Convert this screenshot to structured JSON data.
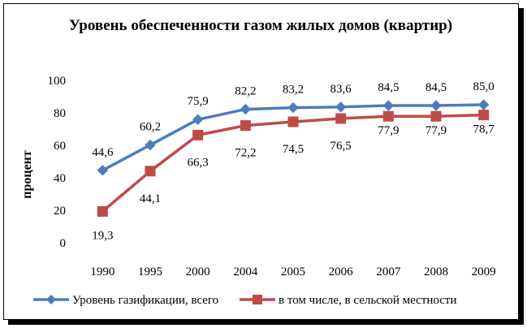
{
  "chart_data": {
    "type": "line",
    "title": "Уровень обеспеченности газом жилых домов (квартир)",
    "ylabel": "процент",
    "xlabel": "",
    "categories": [
      "1990",
      "1995",
      "2000",
      "2004",
      "2005",
      "2006",
      "2007",
      "2008",
      "2009"
    ],
    "ylim": [
      0,
      100
    ],
    "yticks": [
      "0",
      "20",
      "40",
      "60",
      "80",
      "100"
    ],
    "grid": false,
    "legend_position": "bottom",
    "series": [
      {
        "name": "Уровень газификации, всего",
        "values": [
          44.6,
          60.2,
          75.9,
          82.2,
          83.2,
          83.6,
          84.5,
          84.5,
          85.0
        ],
        "labels": [
          "44,6",
          "60,2",
          "75,9",
          "82,2",
          "83,2",
          "83,6",
          "84,5",
          "84,5",
          "85,0"
        ],
        "color": "#4a7ebb",
        "marker": "diamond"
      },
      {
        "name": "в том числе, в сельской местности",
        "values": [
          19.3,
          44.1,
          66.3,
          72.2,
          74.5,
          76.5,
          77.9,
          77.9,
          78.7
        ],
        "labels": [
          "19,3",
          "44,1",
          "66,3",
          "72,2",
          "74,5",
          "76,5",
          "77,9",
          "77,9",
          "78,7"
        ],
        "color": "#be4b48",
        "marker": "square"
      }
    ]
  }
}
